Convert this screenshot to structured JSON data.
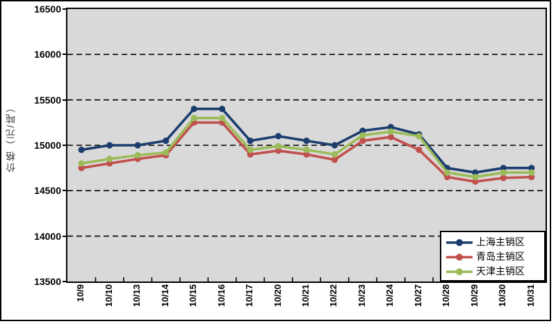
{
  "chart_data": {
    "type": "line",
    "title": "",
    "xlabel": "",
    "ylabel": "价格（元/吨）",
    "ylim": [
      13500,
      16500
    ],
    "yticks": [
      16500,
      16000,
      15500,
      15000,
      14500,
      14000,
      13500
    ],
    "gridlines": [
      16000,
      15500,
      15000,
      14500,
      14000
    ],
    "grid_style": "dashed-horizontal",
    "plot_background": "#d9d9d9",
    "legend_position": "bottom-right-inside",
    "categories": [
      "10/9",
      "10/10",
      "10/13",
      "10/14",
      "10/15",
      "10/16",
      "10/17",
      "10/20",
      "10/21",
      "10/22",
      "10/23",
      "10/24",
      "10/27",
      "10/28",
      "10/29",
      "10/30",
      "10/31"
    ],
    "series": [
      {
        "name": "上海主销区",
        "color": "#1b3d6e",
        "marker": "circle",
        "values": [
          14950,
          15000,
          15000,
          15050,
          15400,
          15400,
          15050,
          15100,
          15050,
          15000,
          15160,
          15200,
          15120,
          14750,
          14700,
          14750,
          14750
        ]
      },
      {
        "name": "青岛主销区",
        "color": "#c0504d",
        "marker": "circle",
        "values": [
          14750,
          14800,
          14850,
          14890,
          15250,
          15250,
          14900,
          14940,
          14900,
          14840,
          15050,
          15090,
          14950,
          14650,
          14600,
          14640,
          14650
        ]
      },
      {
        "name": "天津主销区",
        "color": "#9bbb59",
        "marker": "circle",
        "values": [
          14800,
          14850,
          14890,
          14920,
          15300,
          15300,
          14950,
          14990,
          14950,
          14900,
          15110,
          15150,
          15100,
          14700,
          14650,
          14700,
          14700
        ]
      }
    ]
  }
}
